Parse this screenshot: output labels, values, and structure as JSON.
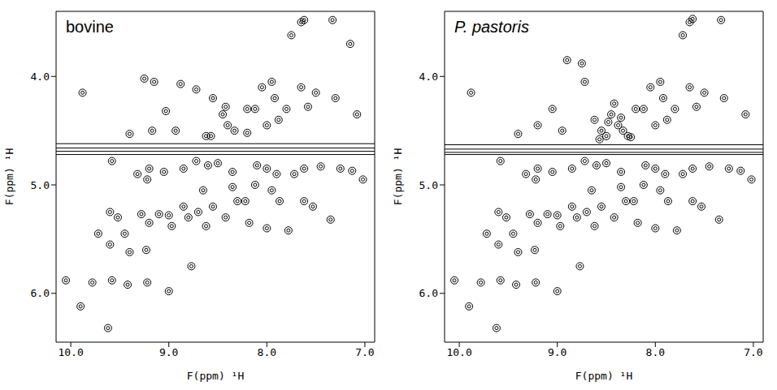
{
  "chart_data": [
    {
      "type": "scatter",
      "title": "bovine",
      "x_label": "F(ppm) ¹H",
      "y_label": "F(ppm) ¹H",
      "xlim": [
        10.15,
        6.9
      ],
      "ylim": [
        3.4,
        6.45
      ],
      "xticks": [
        {
          "value": 10,
          "label": "10.0"
        },
        {
          "value": 9,
          "label": "9.0"
        },
        {
          "value": 8,
          "label": "8.0"
        },
        {
          "value": 7,
          "label": "7.0"
        }
      ],
      "yticks": [
        {
          "value": 4,
          "label": "4.0"
        },
        {
          "value": 5,
          "label": "5.0"
        },
        {
          "value": 6,
          "label": "6.0"
        }
      ],
      "hlines": [
        4.62,
        4.66,
        4.69,
        4.72
      ],
      "color": "#000000",
      "marker": "circle",
      "x": [
        9.88,
        9.25,
        9.15,
        9.4,
        9.17,
        8.93,
        9.03,
        8.88,
        8.72,
        8.62,
        8.55,
        8.45,
        8.42,
        8.4,
        8.33,
        8.2,
        8.12,
        8.05,
        7.95,
        7.92,
        7.88,
        8.0,
        7.8,
        7.65,
        7.58,
        7.5,
        7.3,
        7.08,
        7.65,
        7.62,
        7.33,
        7.75,
        7.15,
        8.57,
        8.2,
        9.58,
        9.32,
        9.2,
        9.22,
        9.05,
        8.85,
        8.72,
        8.6,
        8.5,
        8.35,
        8.1,
        8.0,
        7.9,
        7.72,
        7.62,
        7.45,
        7.25,
        7.13,
        7.02,
        9.6,
        9.52,
        9.72,
        9.6,
        9.45,
        9.4,
        9.42,
        9.28,
        9.2,
        9.1,
        9.0,
        9.23,
        8.97,
        8.85,
        8.8,
        8.7,
        8.62,
        8.55,
        8.42,
        8.3,
        8.22,
        8.18,
        8.35,
        8.12,
        7.95,
        7.87,
        7.78,
        7.62,
        7.53,
        7.35,
        8.0,
        8.65,
        8.77,
        9.0,
        9.22,
        9.58,
        9.78,
        9.9,
        10.05,
        9.62
      ],
      "y": [
        4.15,
        4.02,
        4.05,
        4.53,
        4.5,
        4.5,
        4.32,
        4.07,
        4.12,
        4.55,
        4.2,
        4.35,
        4.28,
        4.45,
        4.5,
        4.3,
        4.3,
        4.1,
        4.05,
        4.2,
        4.4,
        4.45,
        4.3,
        4.1,
        4.28,
        4.15,
        4.2,
        4.35,
        3.5,
        3.48,
        3.48,
        3.62,
        3.7,
        4.55,
        4.52,
        4.78,
        4.9,
        4.85,
        4.95,
        4.88,
        4.85,
        4.78,
        4.82,
        4.8,
        4.88,
        4.82,
        4.85,
        4.9,
        4.9,
        4.85,
        4.83,
        4.85,
        4.87,
        4.95,
        5.25,
        5.3,
        5.45,
        5.55,
        5.45,
        5.62,
        5.92,
        5.27,
        5.35,
        5.27,
        5.28,
        5.6,
        5.38,
        5.2,
        5.3,
        5.25,
        5.38,
        5.2,
        5.3,
        5.15,
        5.15,
        5.35,
        5.02,
        5.0,
        5.05,
        5.15,
        5.42,
        5.15,
        5.2,
        5.32,
        5.4,
        5.05,
        5.75,
        5.98,
        5.9,
        5.88,
        5.9,
        6.12,
        5.88,
        6.32
      ]
    },
    {
      "type": "scatter",
      "title": "P. pastoris",
      "x_label": "F(ppm) ¹H",
      "y_label": "F(ppm) ¹H",
      "xlim": [
        10.15,
        6.9
      ],
      "ylim": [
        3.4,
        6.45
      ],
      "xticks": [
        {
          "value": 10,
          "label": "10.0"
        },
        {
          "value": 9,
          "label": "9.0"
        },
        {
          "value": 8,
          "label": "8.0"
        },
        {
          "value": 7,
          "label": "7.0"
        }
      ],
      "yticks": [
        {
          "value": 4,
          "label": "4.0"
        },
        {
          "value": 5,
          "label": "5.0"
        },
        {
          "value": 6,
          "label": "6.0"
        }
      ],
      "hlines": [
        4.63,
        4.67,
        4.7,
        4.72
      ],
      "color": "#000000",
      "marker": "circle",
      "x": [
        9.88,
        8.9,
        8.75,
        9.4,
        9.2,
        8.95,
        9.05,
        8.72,
        8.62,
        8.55,
        8.5,
        8.45,
        8.42,
        8.38,
        8.33,
        8.28,
        8.2,
        8.12,
        8.05,
        7.95,
        7.92,
        7.88,
        8.0,
        7.8,
        7.65,
        7.58,
        7.5,
        7.3,
        7.08,
        7.65,
        7.62,
        7.33,
        7.72,
        8.57,
        8.48,
        8.35,
        8.25,
        9.58,
        9.32,
        9.2,
        9.22,
        9.05,
        8.85,
        8.72,
        8.6,
        8.5,
        8.35,
        8.1,
        8.0,
        7.9,
        7.72,
        7.62,
        7.45,
        7.25,
        7.13,
        7.02,
        9.6,
        9.52,
        9.72,
        9.6,
        9.45,
        9.4,
        9.42,
        9.28,
        9.2,
        9.1,
        9.0,
        9.23,
        8.97,
        8.85,
        8.8,
        8.7,
        8.62,
        8.55,
        8.42,
        8.3,
        8.22,
        8.18,
        8.35,
        8.12,
        7.95,
        7.87,
        7.78,
        7.62,
        7.53,
        7.35,
        8.0,
        8.65,
        8.77,
        9.0,
        9.22,
        9.58,
        9.78,
        9.9,
        10.05,
        9.62
      ],
      "y": [
        4.15,
        3.85,
        3.88,
        4.53,
        4.45,
        4.5,
        4.3,
        4.05,
        4.4,
        4.5,
        4.55,
        4.35,
        4.25,
        4.45,
        4.5,
        4.55,
        4.3,
        4.3,
        4.1,
        4.05,
        4.2,
        4.4,
        4.45,
        4.3,
        4.1,
        4.28,
        4.15,
        4.2,
        4.35,
        3.5,
        3.47,
        3.48,
        3.62,
        4.58,
        4.42,
        4.38,
        4.56,
        4.78,
        4.9,
        4.85,
        4.95,
        4.88,
        4.85,
        4.78,
        4.82,
        4.8,
        4.88,
        4.82,
        4.85,
        4.9,
        4.9,
        4.85,
        4.83,
        4.85,
        4.87,
        4.95,
        5.25,
        5.3,
        5.45,
        5.55,
        5.45,
        5.62,
        5.92,
        5.27,
        5.35,
        5.27,
        5.28,
        5.6,
        5.38,
        5.2,
        5.3,
        5.25,
        5.38,
        5.2,
        5.3,
        5.15,
        5.15,
        5.35,
        5.02,
        5.0,
        5.05,
        5.15,
        5.42,
        5.15,
        5.2,
        5.32,
        5.4,
        5.05,
        5.75,
        5.98,
        5.9,
        5.88,
        5.9,
        6.12,
        5.88,
        6.32
      ]
    }
  ]
}
